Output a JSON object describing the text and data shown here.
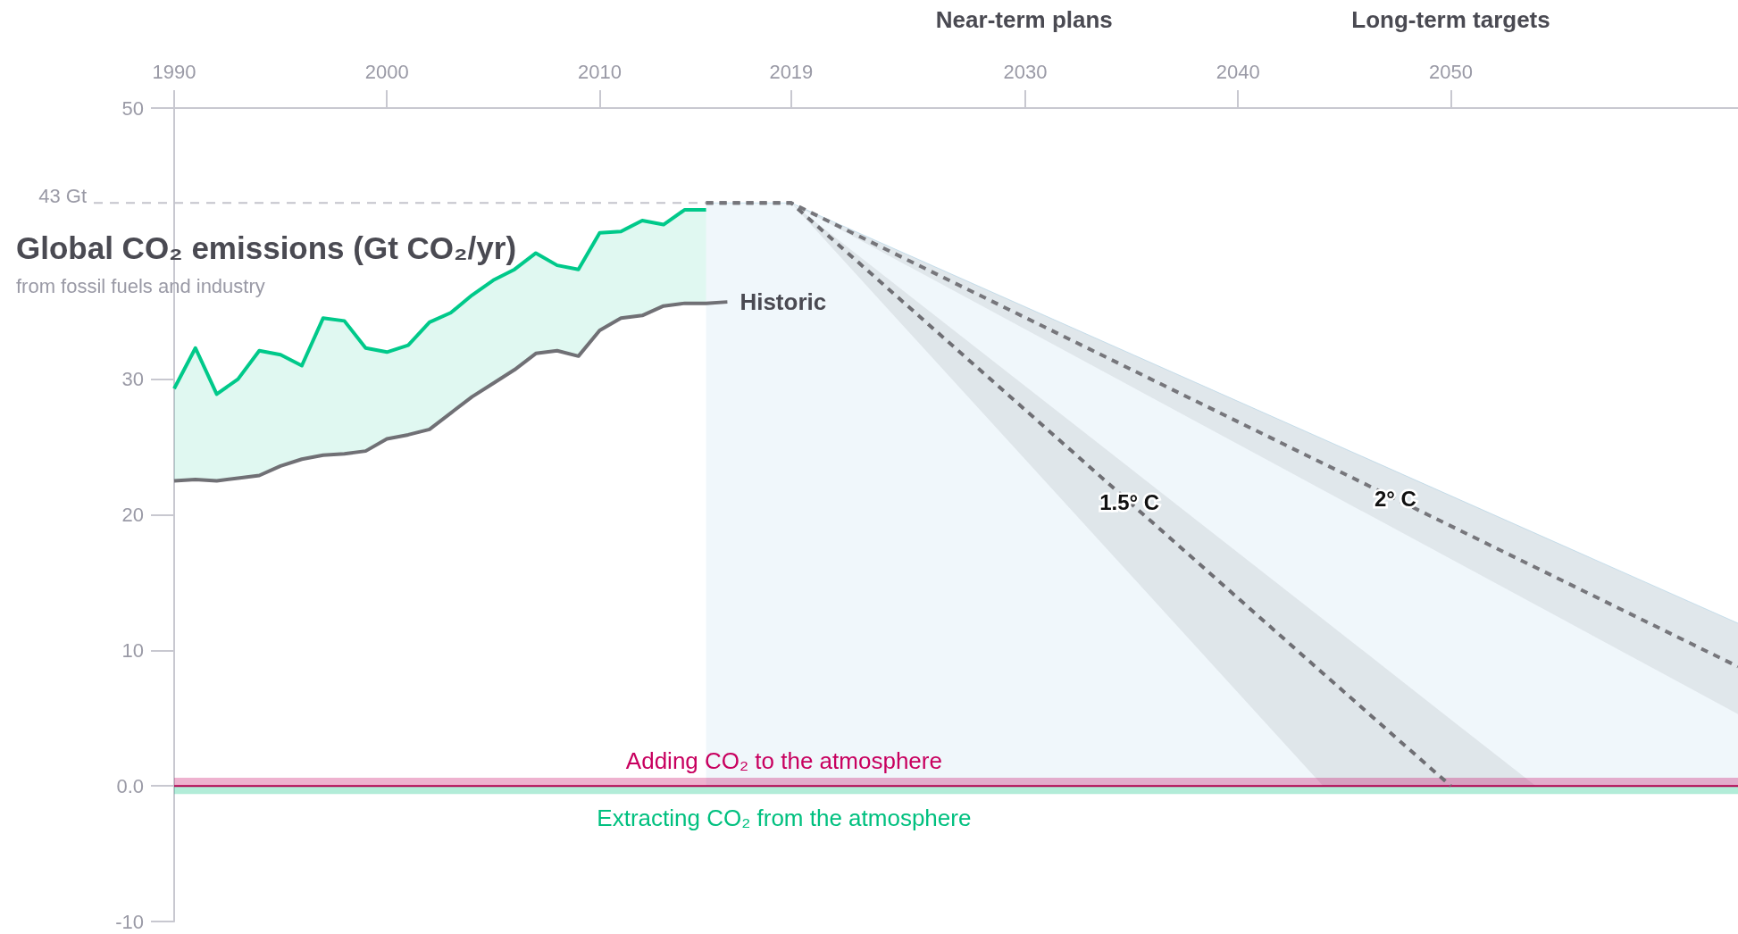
{
  "chart_data": {
    "type": "line",
    "title": "Global CO₂ emissions (Gt CO₂/yr)",
    "subtitle": "from fossil fuels and industry",
    "xlim": [
      1990,
      2063.5
    ],
    "xticks": [
      1990,
      2000,
      2010,
      2019,
      2030,
      2040,
      2050
    ],
    "ylim": [
      -10,
      50
    ],
    "yticks": [
      50,
      30,
      20,
      10,
      {
        "value": 0,
        "label": "0.0"
      },
      -10
    ],
    "series": [
      {
        "type": "area",
        "color": "#cce5f2",
        "x": [
          2015,
          2019,
          2063.5
        ],
        "values": [
          43,
          43,
          12.0
        ]
      },
      {
        "color": "#00c98a",
        "x": [
          1990,
          1991,
          1992,
          1993,
          1994,
          1995,
          1996,
          1997,
          1998,
          1999,
          2000,
          2001,
          2002,
          2003,
          2004,
          2005,
          2006,
          2007,
          2008,
          2009,
          2010,
          2011,
          2012,
          2013,
          2014,
          2015
        ],
        "values": [
          29.3,
          32.3,
          28.9,
          30.0,
          32.1,
          31.8,
          31.0,
          34.5,
          34.3,
          32.3,
          32.0,
          32.5,
          34.2,
          34.9,
          36.2,
          37.3,
          38.1,
          39.3,
          38.4,
          38.1,
          40.8,
          40.9,
          41.7,
          41.4,
          42.5,
          42.5
        ],
        "lower": [
          22.5,
          22.6,
          22.5,
          22.7,
          22.9,
          23.6,
          24.1,
          24.4,
          24.5,
          24.7,
          25.6,
          25.9,
          26.3,
          27.5,
          28.7,
          29.7,
          30.7,
          31.9,
          32.1,
          31.7,
          33.6,
          34.5,
          34.7,
          35.4,
          35.6,
          35.6
        ],
        "upper": [
          29.3,
          32.3,
          28.9,
          30.0,
          32.1,
          31.8,
          31.0,
          34.5,
          34.3,
          32.3,
          32.0,
          32.5,
          34.2,
          34.9,
          36.2,
          37.3,
          38.1,
          39.3,
          38.4,
          38.1,
          40.8,
          40.9,
          41.7,
          41.4,
          42.5,
          42.5
        ]
      },
      {
        "name": "Historic",
        "color": "#707075",
        "x": [
          1990,
          1991,
          1992,
          1993,
          1994,
          1995,
          1996,
          1997,
          1998,
          1999,
          2000,
          2001,
          2002,
          2003,
          2004,
          2005,
          2006,
          2007,
          2008,
          2009,
          2010,
          2011,
          2012,
          2013,
          2014,
          2015,
          2016
        ],
        "values": [
          22.5,
          22.6,
          22.5,
          22.7,
          22.9,
          23.6,
          24.1,
          24.4,
          24.5,
          24.7,
          25.6,
          25.9,
          26.3,
          27.5,
          28.7,
          29.7,
          30.7,
          31.9,
          32.1,
          31.7,
          33.6,
          34.5,
          34.7,
          35.4,
          35.6,
          35.6,
          35.7
        ]
      },
      {
        "color": "#6e6e73",
        "line_style": "dashed",
        "x": [
          2015,
          2019,
          2044,
          2050,
          2054
        ],
        "values": [
          43,
          43,
          8.3,
          0,
          null
        ],
        "lower": [
          43,
          43,
          0,
          0,
          0
        ],
        "upper": [
          43,
          43,
          12.3,
          4.9,
          0
        ]
      },
      {
        "color": "#76767b",
        "line_style": "dashed",
        "x": [
          2015,
          2019,
          2063.5
        ],
        "values": [
          43,
          43,
          8.8
        ],
        "lower": [
          43,
          43,
          5.3
        ],
        "upper": [
          43,
          43,
          12.0
        ]
      }
    ],
    "ref_lines": [
      {
        "axis": "y",
        "value": 43,
        "label": "43 Gt",
        "color": "#c4c4cc",
        "line_style": "dashed"
      },
      {
        "axis": "y",
        "value": 0,
        "color": "#b0004f"
      }
    ],
    "bands": [
      {
        "axis": "y",
        "from": 0,
        "to": 0.6,
        "label": "Adding CO₂ to the atmosphere",
        "color": "#c8005f"
      },
      {
        "axis": "y",
        "from": -0.6,
        "to": 0,
        "label": "Extracting CO₂ from the atmosphere",
        "color": "#00c07f"
      }
    ],
    "annotations": [
      "Near-term plans",
      "Long-term targets",
      {
        "text": "1.5° C",
        "x": 2034.9,
        "y": 20.9
      },
      {
        "text": "2° C",
        "x": 2047.4,
        "y": 21.2
      }
    ],
    "marker": "none",
    "legend": false,
    "grid": false
  }
}
